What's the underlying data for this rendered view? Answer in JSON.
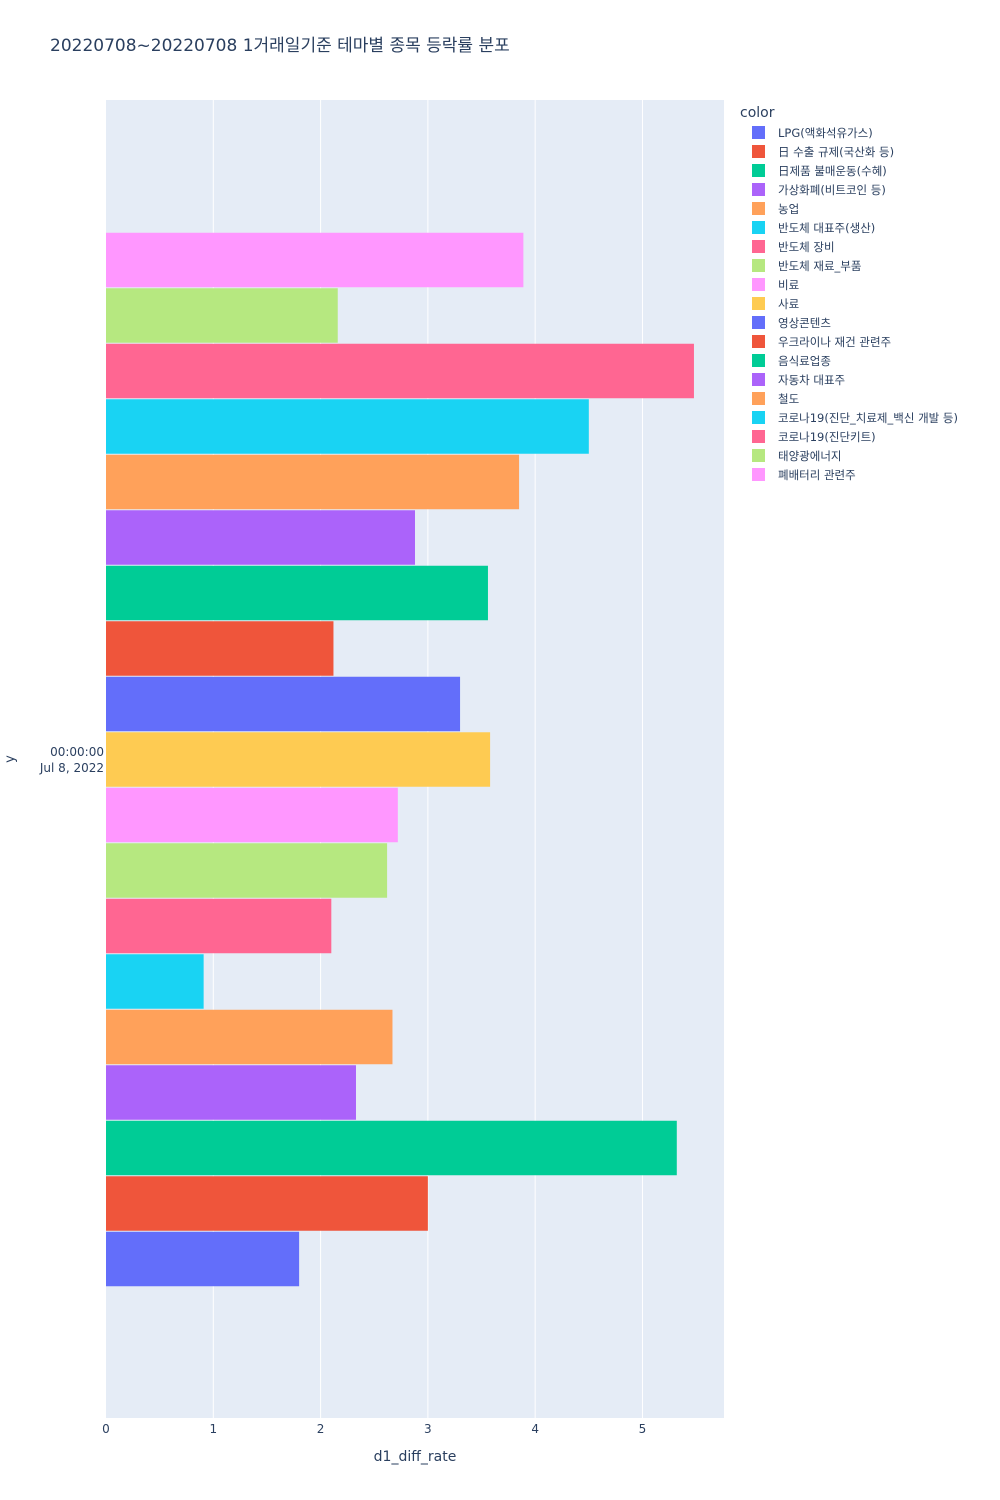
{
  "chart_data": {
    "type": "bar",
    "orientation": "horizontal",
    "barmode": "group",
    "title": "20220708~20220708 1거래일기준 테마별 종목 등락률 분포",
    "xlabel": "d1_diff_rate",
    "ylabel": "y",
    "x_range": [
      0,
      5.76
    ],
    "x_ticks": [
      "0",
      "1",
      "2",
      "3",
      "4",
      "5"
    ],
    "x_tick_values": [
      0,
      1,
      2,
      3,
      4,
      5
    ],
    "y_category_label": [
      "00:00:00",
      "Jul 8, 2022"
    ],
    "legend_title": "color",
    "legend_position": "top-right",
    "grid": true,
    "series": [
      {
        "name": "LPG(액화석유가스)",
        "value": 1.8,
        "color": "#636efa"
      },
      {
        "name": "日 수출 규제(국산화 등)",
        "value": 3.0,
        "color": "#EF553B"
      },
      {
        "name": "日제품 불매운동(수혜)",
        "value": 5.32,
        "color": "#00cc96"
      },
      {
        "name": "가상화폐(비트코인 등)",
        "value": 2.33,
        "color": "#ab63fa"
      },
      {
        "name": "농업",
        "value": 2.67,
        "color": "#FFA15A"
      },
      {
        "name": "반도체 대표주(생산)",
        "value": 0.91,
        "color": "#19d3f3"
      },
      {
        "name": "반도체 장비",
        "value": 2.1,
        "color": "#FF6692"
      },
      {
        "name": "반도체 재료_부품",
        "value": 2.62,
        "color": "#B6E880"
      },
      {
        "name": "비료",
        "value": 2.72,
        "color": "#FF97FF"
      },
      {
        "name": "사료",
        "value": 3.58,
        "color": "#FECB52"
      },
      {
        "name": "영상콘텐츠",
        "value": 3.3,
        "color": "#636efa"
      },
      {
        "name": "우크라이나 재건 관련주",
        "value": 2.12,
        "color": "#EF553B"
      },
      {
        "name": "음식료업종",
        "value": 3.56,
        "color": "#00cc96"
      },
      {
        "name": "자동차 대표주",
        "value": 2.88,
        "color": "#ab63fa"
      },
      {
        "name": "철도",
        "value": 3.85,
        "color": "#FFA15A"
      },
      {
        "name": "코로나19(진단_치료제_백신 개발 등)",
        "value": 4.5,
        "color": "#19d3f3"
      },
      {
        "name": "코로나19(진단키트)",
        "value": 5.48,
        "color": "#FF6692"
      },
      {
        "name": "태양광에너지",
        "value": 2.16,
        "color": "#B6E880"
      },
      {
        "name": "폐배터리 관련주",
        "value": 3.89,
        "color": "#FF97FF"
      }
    ]
  }
}
